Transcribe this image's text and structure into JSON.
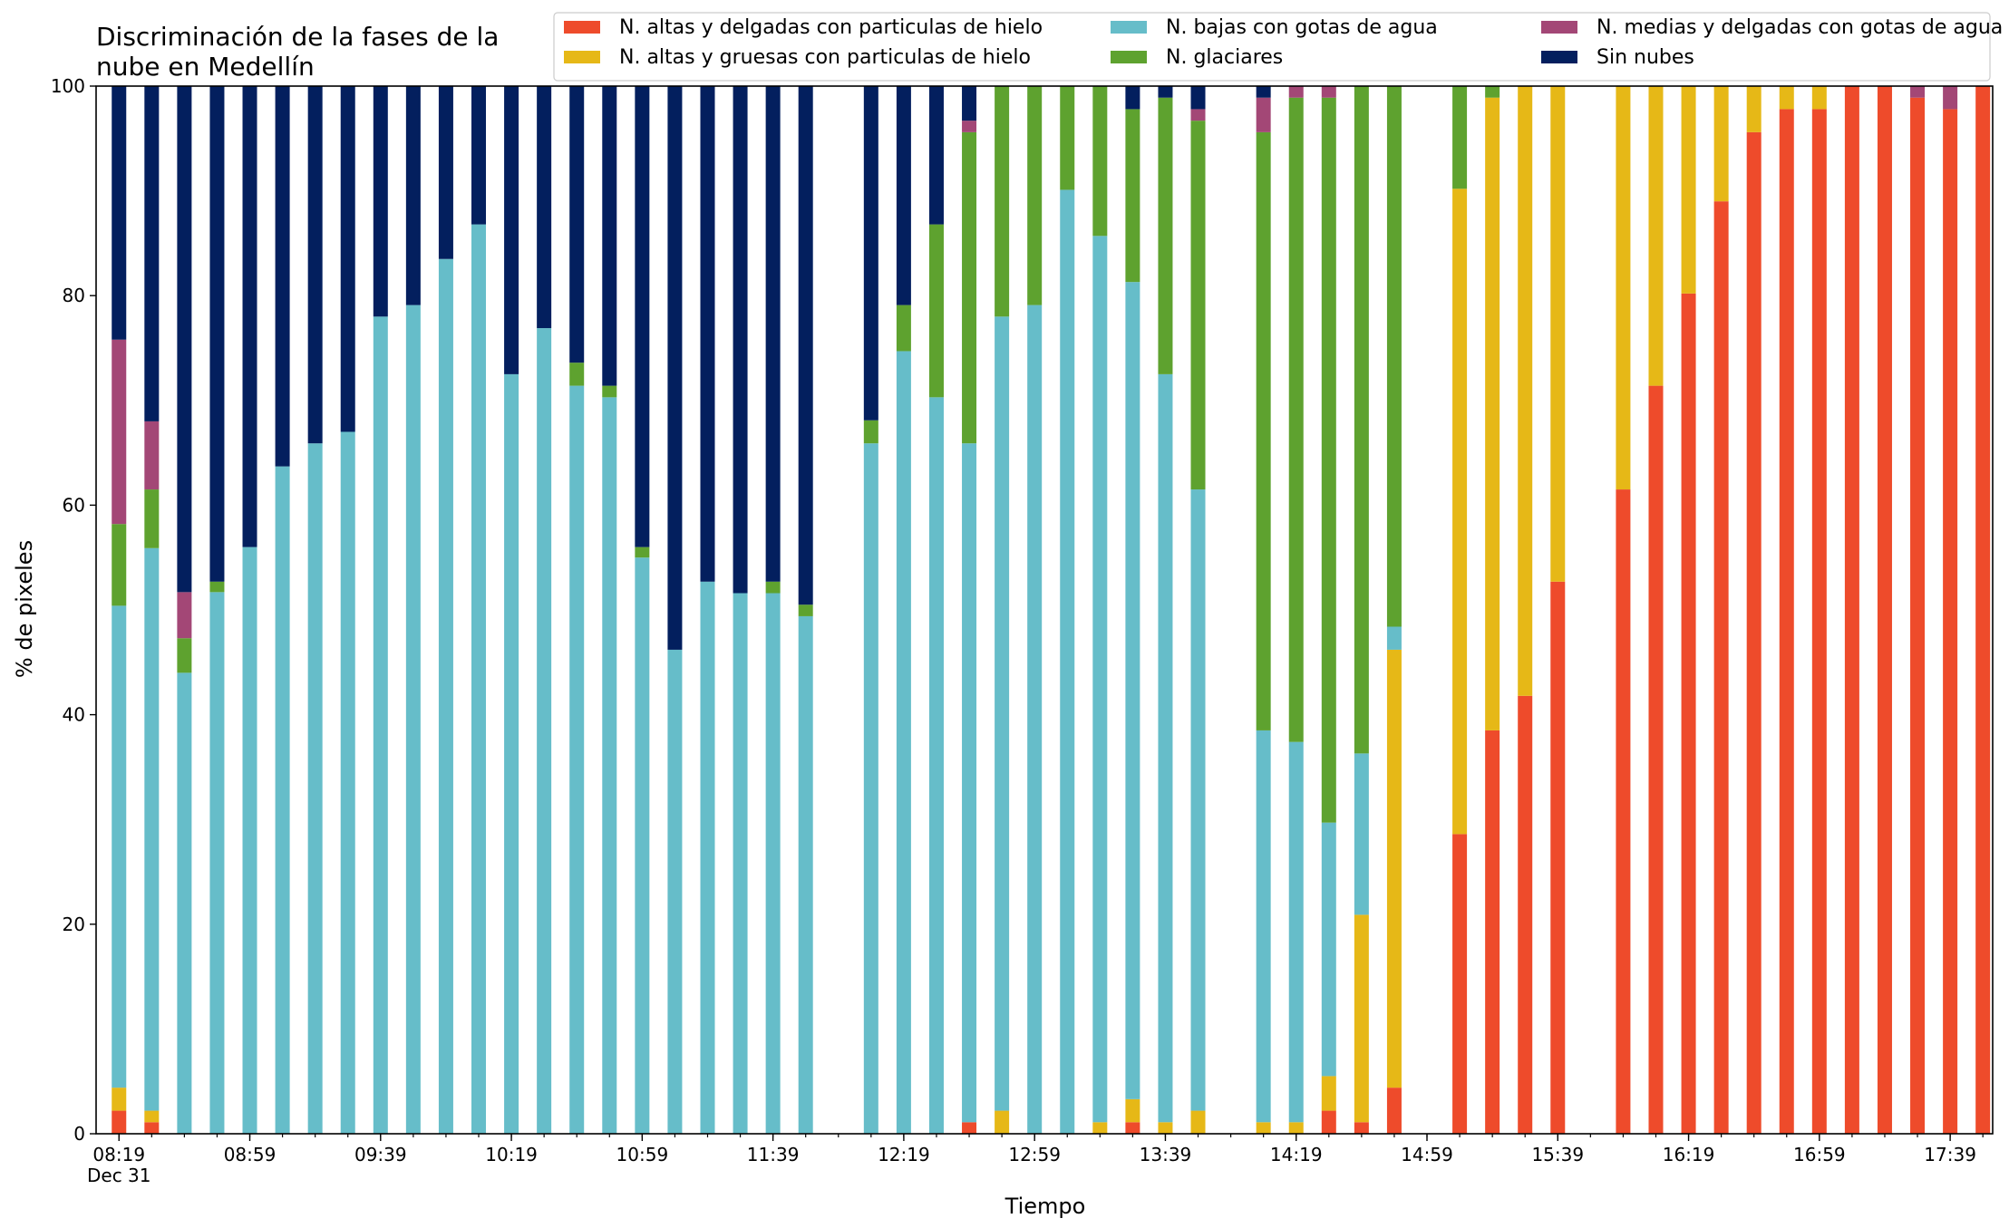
{
  "chart_data": {
    "type": "bar",
    "stacked": true,
    "title": [
      "Discriminación de la fases de la",
      "nube en Medellín"
    ],
    "xlabel": "Tiempo",
    "ylabel": "% de pixeles",
    "ylim": [
      0,
      100
    ],
    "yticks": [
      0,
      20,
      40,
      60,
      80,
      100
    ],
    "xlim_minutes_after_start": [
      -7,
      573
    ],
    "x_tick_labels": [
      {
        "label": "08:19",
        "sublabel": "Dec 31",
        "t": 0
      },
      {
        "label": "08:59",
        "t": 40
      },
      {
        "label": "09:39",
        "t": 80
      },
      {
        "label": "10:19",
        "t": 120
      },
      {
        "label": "10:59",
        "t": 160
      },
      {
        "label": "11:39",
        "t": 200
      },
      {
        "label": "12:19",
        "t": 240
      },
      {
        "label": "12:59",
        "t": 280
      },
      {
        "label": "13:39",
        "t": 320
      },
      {
        "label": "14:19",
        "t": 360
      },
      {
        "label": "14:59",
        "t": 400
      },
      {
        "label": "15:39",
        "t": 440
      },
      {
        "label": "16:19",
        "t": 480
      },
      {
        "label": "16:59",
        "t": 520
      },
      {
        "label": "17:39",
        "t": 560
      }
    ],
    "x_minor_tick_step_minutes": 10,
    "legend": {
      "placement": "top-right",
      "columns": 3
    },
    "series": [
      {
        "name": "N. altas y delgadas con particulas de hielo",
        "color": "#ee4b2b",
        "legend_col": 0,
        "legend_row": 0
      },
      {
        "name": "N. altas y gruesas con particulas de hielo",
        "color": "#e6b817",
        "legend_col": 0,
        "legend_row": 1
      },
      {
        "name": "N. bajas con gotas de agua",
        "color": "#66bdc9",
        "legend_col": 1,
        "legend_row": 0
      },
      {
        "name": "N. glaciares",
        "color": "#5ea22f",
        "legend_col": 1,
        "legend_row": 1
      },
      {
        "name": "N. medias y delgadas con gotas de agua",
        "color": "#a34776",
        "legend_col": 2,
        "legend_row": 0
      },
      {
        "name": "Sin nubes",
        "color": "#031f5e",
        "legend_col": 2,
        "legend_row": 1
      }
    ],
    "bars": [
      {
        "t": 0,
        "values": [
          2.2,
          2.2,
          46.0,
          7.8,
          17.6,
          24.2
        ]
      },
      {
        "t": 10,
        "values": [
          1.1,
          1.1,
          53.7,
          5.6,
          6.5,
          32.0
        ]
      },
      {
        "t": 20,
        "values": [
          0,
          0,
          44.0,
          3.3,
          4.4,
          48.3
        ]
      },
      {
        "t": 30,
        "values": [
          0,
          0,
          51.7,
          1.0,
          0,
          47.3
        ]
      },
      {
        "t": 40,
        "values": [
          0,
          0,
          56.0,
          0,
          0,
          44.0
        ]
      },
      {
        "t": 50,
        "values": [
          0,
          0,
          63.7,
          0,
          0,
          36.3
        ]
      },
      {
        "t": 60,
        "values": [
          0,
          0,
          65.9,
          0,
          0,
          34.1
        ]
      },
      {
        "t": 70,
        "values": [
          0,
          0,
          67.0,
          0,
          0,
          33.0
        ]
      },
      {
        "t": 80,
        "values": [
          0,
          0,
          78.0,
          0,
          0,
          22.0
        ]
      },
      {
        "t": 90,
        "values": [
          0,
          0,
          79.1,
          0,
          0,
          20.9
        ]
      },
      {
        "t": 100,
        "values": [
          0,
          0,
          83.5,
          0,
          0,
          16.5
        ]
      },
      {
        "t": 110,
        "values": [
          0,
          0,
          86.8,
          0,
          0,
          13.2
        ]
      },
      {
        "t": 120,
        "values": [
          0,
          0,
          72.5,
          0,
          0,
          27.5
        ]
      },
      {
        "t": 130,
        "values": [
          0,
          0,
          76.9,
          0,
          0,
          23.1
        ]
      },
      {
        "t": 140,
        "values": [
          0,
          0,
          71.4,
          2.2,
          0,
          26.4
        ]
      },
      {
        "t": 150,
        "values": [
          0,
          0,
          70.3,
          1.1,
          0,
          28.6
        ]
      },
      {
        "t": 160,
        "values": [
          0,
          0,
          55.0,
          1.0,
          0,
          44.0
        ]
      },
      {
        "t": 170,
        "values": [
          0,
          0,
          46.2,
          0,
          0,
          53.8
        ]
      },
      {
        "t": 180,
        "values": [
          0,
          0,
          52.7,
          0,
          0,
          47.3
        ]
      },
      {
        "t": 190,
        "values": [
          0,
          0,
          51.6,
          0,
          0,
          48.4
        ]
      },
      {
        "t": 200,
        "values": [
          0,
          0,
          51.6,
          1.1,
          0,
          47.3
        ]
      },
      {
        "t": 210,
        "values": [
          0,
          0,
          49.4,
          1.1,
          0,
          49.5
        ]
      },
      {
        "t": 230,
        "values": [
          0,
          0,
          65.9,
          2.2,
          0,
          31.9
        ]
      },
      {
        "t": 240,
        "values": [
          0,
          0,
          74.7,
          4.4,
          0,
          20.9
        ]
      },
      {
        "t": 250,
        "values": [
          0,
          0,
          70.3,
          16.5,
          0,
          13.2
        ]
      },
      {
        "t": 260,
        "values": [
          1.1,
          0,
          64.8,
          29.7,
          1.1,
          3.3
        ]
      },
      {
        "t": 270,
        "values": [
          0,
          2.2,
          75.8,
          22.0,
          0,
          0
        ]
      },
      {
        "t": 280,
        "values": [
          0,
          0,
          79.1,
          20.9,
          0,
          0
        ]
      },
      {
        "t": 290,
        "values": [
          0,
          0,
          90.1,
          9.9,
          0,
          0
        ]
      },
      {
        "t": 300,
        "values": [
          0,
          1.1,
          84.6,
          14.3,
          0,
          0
        ]
      },
      {
        "t": 310,
        "values": [
          1.1,
          2.2,
          78.0,
          16.5,
          0,
          2.2
        ]
      },
      {
        "t": 320,
        "values": [
          0,
          1.1,
          71.4,
          26.4,
          0,
          1.1
        ]
      },
      {
        "t": 330,
        "values": [
          0,
          2.2,
          59.3,
          35.2,
          1.1,
          2.2
        ]
      },
      {
        "t": 350,
        "values": [
          0,
          1.1,
          37.4,
          57.1,
          3.3,
          1.1
        ]
      },
      {
        "t": 360,
        "values": [
          0,
          1.1,
          36.3,
          61.5,
          1.1,
          0
        ]
      },
      {
        "t": 370,
        "values": [
          2.2,
          3.3,
          24.2,
          69.2,
          1.1,
          0
        ]
      },
      {
        "t": 380,
        "values": [
          1.1,
          19.8,
          15.4,
          63.7,
          0,
          0
        ]
      },
      {
        "t": 390,
        "values": [
          4.4,
          41.8,
          2.2,
          51.6,
          0,
          0
        ]
      },
      {
        "t": 410,
        "values": [
          28.6,
          61.6,
          0,
          9.8,
          0,
          0
        ]
      },
      {
        "t": 420,
        "values": [
          38.5,
          60.4,
          0,
          1.1,
          0,
          0
        ]
      },
      {
        "t": 430,
        "values": [
          41.8,
          58.2,
          0,
          0,
          0,
          0
        ]
      },
      {
        "t": 440,
        "values": [
          52.7,
          47.3,
          0,
          0,
          0,
          0
        ]
      },
      {
        "t": 460,
        "values": [
          61.5,
          38.5,
          0,
          0,
          0,
          0
        ]
      },
      {
        "t": 470,
        "values": [
          71.4,
          28.6,
          0,
          0,
          0,
          0
        ]
      },
      {
        "t": 480,
        "values": [
          80.2,
          19.8,
          0,
          0,
          0,
          0
        ]
      },
      {
        "t": 490,
        "values": [
          89.0,
          11.0,
          0,
          0,
          0,
          0
        ]
      },
      {
        "t": 500,
        "values": [
          95.6,
          4.4,
          0,
          0,
          0,
          0
        ]
      },
      {
        "t": 510,
        "values": [
          97.8,
          2.2,
          0,
          0,
          0,
          0
        ]
      },
      {
        "t": 520,
        "values": [
          97.8,
          2.2,
          0,
          0,
          0,
          0
        ]
      },
      {
        "t": 530,
        "values": [
          100,
          0,
          0,
          0,
          0,
          0
        ]
      },
      {
        "t": 540,
        "values": [
          100,
          0,
          0,
          0,
          0,
          0
        ]
      },
      {
        "t": 550,
        "values": [
          98.9,
          0,
          0,
          0,
          1.1,
          0
        ]
      },
      {
        "t": 560,
        "values": [
          97.8,
          0,
          0,
          0,
          2.2,
          0
        ]
      },
      {
        "t": 570,
        "values": [
          100,
          0,
          0,
          0,
          0,
          0
        ]
      }
    ]
  }
}
